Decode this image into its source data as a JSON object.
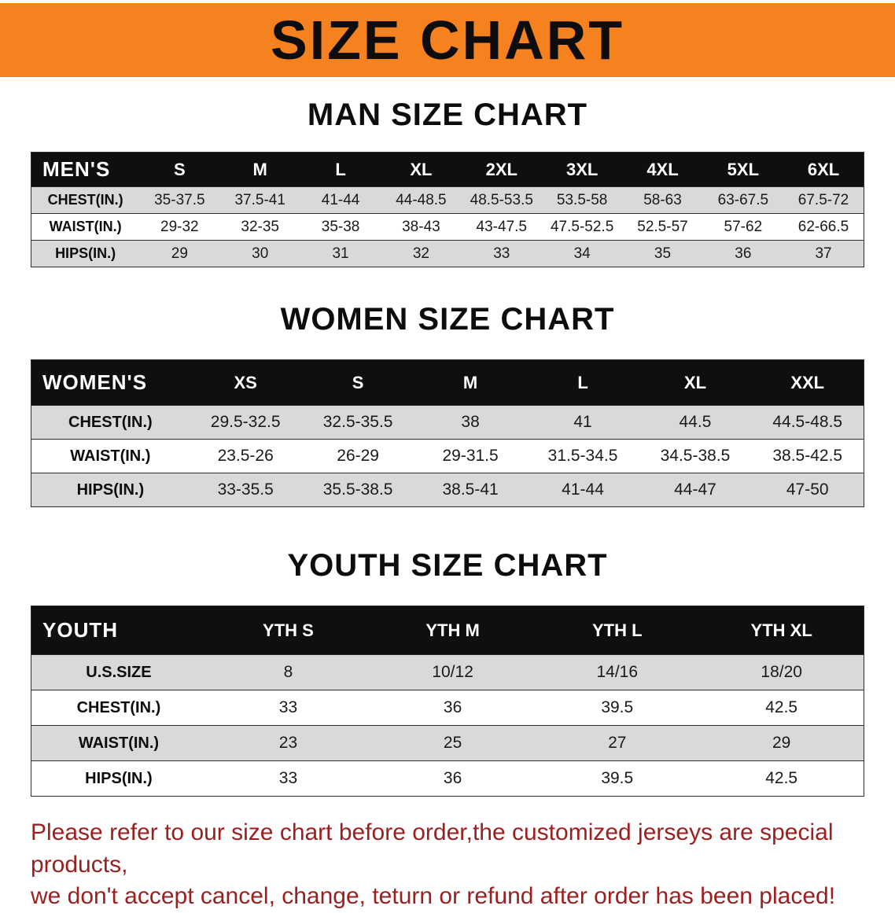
{
  "banner": {
    "title": "SIZE CHART"
  },
  "men": {
    "heading": "MAN SIZE CHART",
    "corner": "MEN'S",
    "columns": [
      "S",
      "M",
      "L",
      "XL",
      "2XL",
      "3XL",
      "4XL",
      "5XL",
      "6XL"
    ],
    "rows": [
      {
        "label": "CHEST(IN.)",
        "values": [
          "35-37.5",
          "37.5-41",
          "41-44",
          "44-48.5",
          "48.5-53.5",
          "53.5-58",
          "58-63",
          "63-67.5",
          "67.5-72"
        ]
      },
      {
        "label": "WAIST(IN.)",
        "values": [
          "29-32",
          "32-35",
          "35-38",
          "38-43",
          "43-47.5",
          "47.5-52.5",
          "52.5-57",
          "57-62",
          "62-66.5"
        ]
      },
      {
        "label": "HIPS(IN.)",
        "values": [
          "29",
          "30",
          "31",
          "32",
          "33",
          "34",
          "35",
          "36",
          "37"
        ]
      }
    ]
  },
  "women": {
    "heading": "WOMEN SIZE CHART",
    "corner": "WOMEN'S",
    "columns": [
      "XS",
      "S",
      "M",
      "L",
      "XL",
      "XXL"
    ],
    "rows": [
      {
        "label": "CHEST(IN.)",
        "values": [
          "29.5-32.5",
          "32.5-35.5",
          "38",
          "41",
          "44.5",
          "44.5-48.5"
        ]
      },
      {
        "label": "WAIST(IN.)",
        "values": [
          "23.5-26",
          "26-29",
          "29-31.5",
          "31.5-34.5",
          "34.5-38.5",
          "38.5-42.5"
        ]
      },
      {
        "label": "HIPS(IN.)",
        "values": [
          "33-35.5",
          "35.5-38.5",
          "38.5-41",
          "41-44",
          "44-47",
          "47-50"
        ]
      }
    ]
  },
  "youth": {
    "heading": "YOUTH SIZE CHART",
    "corner": "YOUTH",
    "columns": [
      "YTH S",
      "YTH M",
      "YTH L",
      "YTH XL"
    ],
    "rows": [
      {
        "label": "U.S.SIZE",
        "values": [
          "8",
          "10/12",
          "14/16",
          "18/20"
        ]
      },
      {
        "label": "CHEST(IN.)",
        "values": [
          "33",
          "36",
          "39.5",
          "42.5"
        ]
      },
      {
        "label": "WAIST(IN.)",
        "values": [
          "23",
          "25",
          "27",
          "29"
        ]
      },
      {
        "label": "HIPS(IN.)",
        "values": [
          "33",
          "36",
          "39.5",
          "42.5"
        ]
      }
    ]
  },
  "footer": {
    "line1": "Please refer to our size chart before order,the customized jerseys are special products,",
    "line2": "we don't accept cancel, change, teturn or refund after order has been placed!"
  },
  "colors": {
    "banner_bg": "#F5821F",
    "table_header_bg": "#0F0F0F",
    "row_alt_bg": "#D9D9D9",
    "footer_text": "#9B1F1F"
  }
}
